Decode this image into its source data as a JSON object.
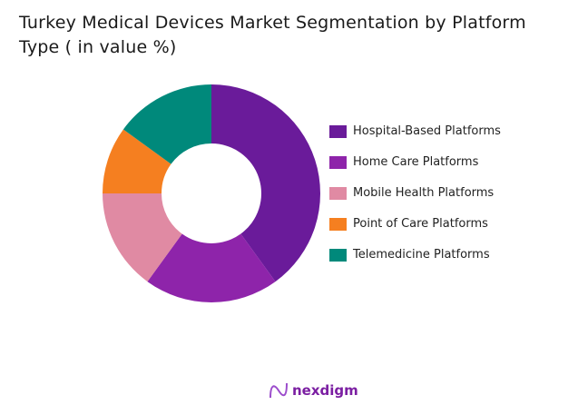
{
  "chart_data": {
    "type": "pie",
    "variant": "donut",
    "title": "Turkey Medical Devices Market Segmentation by Platform Type ( in value %)",
    "categories": [
      "Hospital-Based Platforms",
      "Home Care Platforms",
      "Mobile Health Platforms",
      "Point of Care Platforms",
      "Telemedicine Platforms"
    ],
    "values": [
      40,
      20,
      15,
      10,
      15
    ],
    "colors": [
      "#6a1b9a",
      "#8e24aa",
      "#e08aa3",
      "#f57f20",
      "#00897b"
    ],
    "legend_position": "right"
  },
  "logo": {
    "text": "nexdigm"
  }
}
